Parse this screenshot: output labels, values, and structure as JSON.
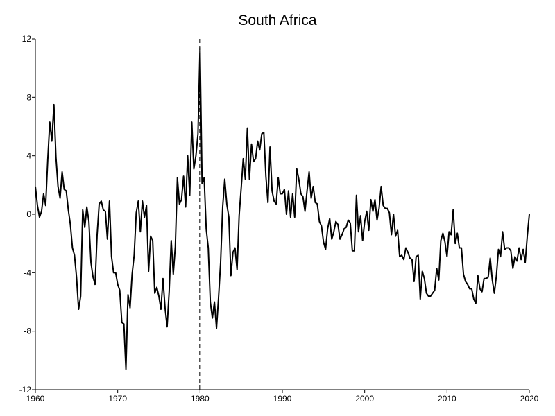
{
  "chart_data": {
    "type": "line",
    "title": "South Africa",
    "xlabel": "",
    "ylabel": "",
    "xlim": [
      1960,
      2020
    ],
    "ylim": [
      -12,
      12
    ],
    "xticks": [
      1960,
      1970,
      1980,
      1990,
      2000,
      2010,
      2020
    ],
    "yticks": [
      -12,
      -8,
      -4,
      0,
      4,
      8,
      12
    ],
    "grid": false,
    "legend": "none",
    "vline_x": 1980,
    "series": [
      {
        "color": "#000000",
        "points": [
          [
            1960.0,
            1.9
          ],
          [
            1960.25,
            0.6
          ],
          [
            1960.5,
            -0.2
          ],
          [
            1960.75,
            0.2
          ],
          [
            1961.0,
            1.4
          ],
          [
            1961.25,
            0.6
          ],
          [
            1961.5,
            3.7
          ],
          [
            1961.75,
            6.3
          ],
          [
            1962.0,
            5.0
          ],
          [
            1962.25,
            7.5
          ],
          [
            1962.5,
            3.9
          ],
          [
            1962.75,
            1.9
          ],
          [
            1963.0,
            1.1
          ],
          [
            1963.25,
            2.9
          ],
          [
            1963.5,
            1.7
          ],
          [
            1963.75,
            1.6
          ],
          [
            1964.0,
            0.3
          ],
          [
            1964.25,
            -0.7
          ],
          [
            1964.5,
            -2.3
          ],
          [
            1964.75,
            -2.8
          ],
          [
            1965.0,
            -4.3
          ],
          [
            1965.25,
            -6.5
          ],
          [
            1965.5,
            -5.6
          ],
          [
            1965.75,
            0.3
          ],
          [
            1966.0,
            -0.9
          ],
          [
            1966.25,
            0.5
          ],
          [
            1966.5,
            -0.5
          ],
          [
            1966.75,
            -3.3
          ],
          [
            1967.0,
            -4.3
          ],
          [
            1967.25,
            -4.8
          ],
          [
            1967.5,
            -1.4
          ],
          [
            1967.75,
            0.7
          ],
          [
            1968.0,
            0.9
          ],
          [
            1968.25,
            0.3
          ],
          [
            1968.5,
            0.2
          ],
          [
            1968.75,
            -1.7
          ],
          [
            1969.0,
            0.9
          ],
          [
            1969.25,
            -2.9
          ],
          [
            1969.5,
            -4.0
          ],
          [
            1969.75,
            -4.0
          ],
          [
            1970.0,
            -4.8
          ],
          [
            1970.25,
            -5.2
          ],
          [
            1970.5,
            -7.4
          ],
          [
            1970.75,
            -7.5
          ],
          [
            1971.0,
            -10.6
          ],
          [
            1971.25,
            -5.5
          ],
          [
            1971.5,
            -6.4
          ],
          [
            1971.75,
            -4.1
          ],
          [
            1972.0,
            -2.8
          ],
          [
            1972.25,
            0.1
          ],
          [
            1972.5,
            0.9
          ],
          [
            1972.75,
            -1.2
          ],
          [
            1973.0,
            0.9
          ],
          [
            1973.25,
            -0.2
          ],
          [
            1973.5,
            0.6
          ],
          [
            1973.75,
            -3.9
          ],
          [
            1974.0,
            -1.5
          ],
          [
            1974.25,
            -1.8
          ],
          [
            1974.5,
            -5.4
          ],
          [
            1974.75,
            -5.0
          ],
          [
            1975.0,
            -5.6
          ],
          [
            1975.25,
            -6.5
          ],
          [
            1975.5,
            -4.4
          ],
          [
            1975.75,
            -6.4
          ],
          [
            1976.0,
            -7.7
          ],
          [
            1976.25,
            -5.3
          ],
          [
            1976.5,
            -1.8
          ],
          [
            1976.75,
            -4.1
          ],
          [
            1977.0,
            -2.2
          ],
          [
            1977.25,
            2.5
          ],
          [
            1977.5,
            0.7
          ],
          [
            1977.75,
            1.0
          ],
          [
            1978.0,
            2.6
          ],
          [
            1978.25,
            0.5
          ],
          [
            1978.5,
            4.0
          ],
          [
            1978.75,
            1.3
          ],
          [
            1979.0,
            6.3
          ],
          [
            1979.25,
            3.1
          ],
          [
            1979.5,
            4.0
          ],
          [
            1979.75,
            5.5
          ],
          [
            1980.0,
            11.4
          ],
          [
            1980.25,
            2.1
          ],
          [
            1980.5,
            2.5
          ],
          [
            1980.75,
            -1.0
          ],
          [
            1981.0,
            -2.3
          ],
          [
            1981.25,
            -6.0
          ],
          [
            1981.5,
            -7.1
          ],
          [
            1981.75,
            -6.0
          ],
          [
            1982.0,
            -7.8
          ],
          [
            1982.25,
            -5.7
          ],
          [
            1982.5,
            -3.3
          ],
          [
            1982.75,
            0.5
          ],
          [
            1983.0,
            2.4
          ],
          [
            1983.25,
            0.7
          ],
          [
            1983.5,
            -0.2
          ],
          [
            1983.75,
            -4.2
          ],
          [
            1984.0,
            -2.6
          ],
          [
            1984.25,
            -2.3
          ],
          [
            1984.5,
            -3.8
          ],
          [
            1984.75,
            -0.1
          ],
          [
            1985.0,
            1.8
          ],
          [
            1985.25,
            3.8
          ],
          [
            1985.5,
            2.4
          ],
          [
            1985.75,
            5.9
          ],
          [
            1986.0,
            2.4
          ],
          [
            1986.25,
            4.8
          ],
          [
            1986.5,
            3.6
          ],
          [
            1986.75,
            3.8
          ],
          [
            1987.0,
            5.0
          ],
          [
            1987.25,
            4.4
          ],
          [
            1987.5,
            5.5
          ],
          [
            1987.75,
            5.6
          ],
          [
            1988.0,
            2.6
          ],
          [
            1988.25,
            0.8
          ],
          [
            1988.5,
            4.6
          ],
          [
            1988.75,
            1.6
          ],
          [
            1989.0,
            0.9
          ],
          [
            1989.25,
            0.7
          ],
          [
            1989.5,
            2.5
          ],
          [
            1989.75,
            1.4
          ],
          [
            1990.0,
            1.4
          ],
          [
            1990.25,
            1.7
          ],
          [
            1990.5,
            0.0
          ],
          [
            1990.75,
            1.6
          ],
          [
            1991.0,
            -0.2
          ],
          [
            1991.25,
            1.4
          ],
          [
            1991.5,
            -0.2
          ],
          [
            1991.75,
            3.1
          ],
          [
            1992.0,
            2.4
          ],
          [
            1992.25,
            1.4
          ],
          [
            1992.5,
            1.2
          ],
          [
            1992.75,
            0.2
          ],
          [
            1993.0,
            1.6
          ],
          [
            1993.25,
            2.9
          ],
          [
            1993.5,
            1.1
          ],
          [
            1993.75,
            1.9
          ],
          [
            1994.0,
            0.8
          ],
          [
            1994.25,
            0.7
          ],
          [
            1994.5,
            -0.5
          ],
          [
            1994.75,
            -0.8
          ],
          [
            1995.0,
            -1.9
          ],
          [
            1995.25,
            -2.4
          ],
          [
            1995.5,
            -1.0
          ],
          [
            1995.75,
            -0.3
          ],
          [
            1996.0,
            -1.7
          ],
          [
            1996.25,
            -1.2
          ],
          [
            1996.5,
            -0.5
          ],
          [
            1996.75,
            -0.7
          ],
          [
            1997.0,
            -1.7
          ],
          [
            1997.25,
            -1.4
          ],
          [
            1997.5,
            -1.0
          ],
          [
            1997.75,
            -0.9
          ],
          [
            1998.0,
            -0.4
          ],
          [
            1998.25,
            -0.6
          ],
          [
            1998.5,
            -2.5
          ],
          [
            1998.75,
            -2.5
          ],
          [
            1999.0,
            1.3
          ],
          [
            1999.25,
            -1.2
          ],
          [
            1999.5,
            -0.1
          ],
          [
            1999.75,
            -1.8
          ],
          [
            2000.0,
            -0.5
          ],
          [
            2000.25,
            0.2
          ],
          [
            2000.5,
            -1.1
          ],
          [
            2000.75,
            1.0
          ],
          [
            2001.0,
            0.2
          ],
          [
            2001.25,
            1.0
          ],
          [
            2001.5,
            -0.4
          ],
          [
            2001.75,
            0.4
          ],
          [
            2002.0,
            1.9
          ],
          [
            2002.25,
            0.6
          ],
          [
            2002.5,
            0.4
          ],
          [
            2002.75,
            0.4
          ],
          [
            2003.0,
            0.1
          ],
          [
            2003.25,
            -1.4
          ],
          [
            2003.5,
            0.0
          ],
          [
            2003.75,
            -1.5
          ],
          [
            2004.0,
            -1.1
          ],
          [
            2004.25,
            -2.9
          ],
          [
            2004.5,
            -2.8
          ],
          [
            2004.75,
            -3.1
          ],
          [
            2005.0,
            -2.3
          ],
          [
            2005.25,
            -2.6
          ],
          [
            2005.5,
            -3.0
          ],
          [
            2005.75,
            -3.1
          ],
          [
            2006.0,
            -4.6
          ],
          [
            2006.25,
            -2.9
          ],
          [
            2006.5,
            -2.8
          ],
          [
            2006.75,
            -5.8
          ],
          [
            2007.0,
            -3.9
          ],
          [
            2007.25,
            -4.4
          ],
          [
            2007.5,
            -5.4
          ],
          [
            2007.75,
            -5.6
          ],
          [
            2008.0,
            -5.6
          ],
          [
            2008.25,
            -5.4
          ],
          [
            2008.5,
            -5.2
          ],
          [
            2008.75,
            -3.7
          ],
          [
            2009.0,
            -4.5
          ],
          [
            2009.25,
            -1.8
          ],
          [
            2009.5,
            -1.3
          ],
          [
            2009.75,
            -1.9
          ],
          [
            2010.0,
            -2.9
          ],
          [
            2010.25,
            -1.2
          ],
          [
            2010.5,
            -1.4
          ],
          [
            2010.75,
            0.3
          ],
          [
            2011.0,
            -2.0
          ],
          [
            2011.25,
            -1.3
          ],
          [
            2011.5,
            -2.3
          ],
          [
            2011.75,
            -2.3
          ],
          [
            2012.0,
            -4.1
          ],
          [
            2012.25,
            -4.6
          ],
          [
            2012.5,
            -4.8
          ],
          [
            2012.75,
            -5.1
          ],
          [
            2013.0,
            -5.1
          ],
          [
            2013.25,
            -5.8
          ],
          [
            2013.5,
            -6.1
          ],
          [
            2013.75,
            -4.2
          ],
          [
            2014.0,
            -5.1
          ],
          [
            2014.25,
            -5.3
          ],
          [
            2014.5,
            -4.4
          ],
          [
            2014.75,
            -4.4
          ],
          [
            2015.0,
            -4.3
          ],
          [
            2015.25,
            -3.0
          ],
          [
            2015.5,
            -4.5
          ],
          [
            2015.75,
            -5.4
          ],
          [
            2016.0,
            -4.2
          ],
          [
            2016.25,
            -2.4
          ],
          [
            2016.5,
            -2.9
          ],
          [
            2016.75,
            -1.2
          ],
          [
            2017.0,
            -2.4
          ],
          [
            2017.25,
            -2.3
          ],
          [
            2017.5,
            -2.3
          ],
          [
            2017.75,
            -2.5
          ],
          [
            2018.0,
            -3.7
          ],
          [
            2018.25,
            -2.9
          ],
          [
            2018.5,
            -3.2
          ],
          [
            2018.75,
            -2.3
          ],
          [
            2019.0,
            -3.1
          ],
          [
            2019.25,
            -2.4
          ],
          [
            2019.5,
            -3.3
          ],
          [
            2019.75,
            -1.5
          ],
          [
            2020.0,
            0.0
          ]
        ]
      }
    ]
  }
}
